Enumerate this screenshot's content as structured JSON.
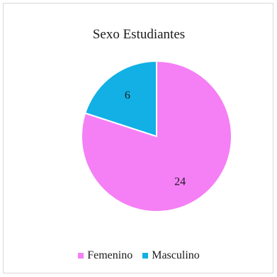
{
  "chart_data": {
    "type": "pie",
    "title": "Sexo Estudiantes",
    "categories": [
      "Femenino",
      "Masculino"
    ],
    "values": [
      24,
      6
    ],
    "colors": [
      "#f57ff5",
      "#12b0e4"
    ],
    "data_labels": [
      "24",
      "6"
    ],
    "legend_position": "bottom",
    "start_angle": "12 o'clock, clockwise"
  }
}
